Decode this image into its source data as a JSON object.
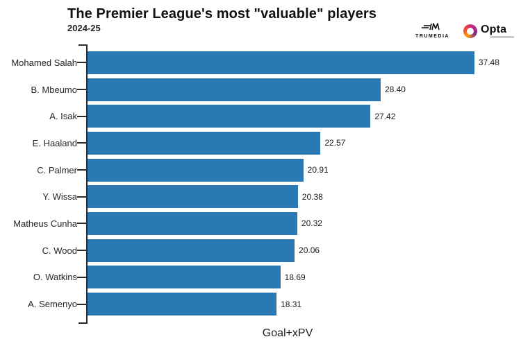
{
  "header": {
    "title": "The Premier League's most \"valuable\" players",
    "subtitle": "2024-25",
    "logos": {
      "trumedia_label": "TRUMEDIA",
      "opta_label": "Opta"
    }
  },
  "chart_data": {
    "type": "bar",
    "orientation": "horizontal",
    "title": "The Premier League's most \"valuable\" players",
    "subtitle": "2024-25",
    "categories": [
      "Mohamed Salah",
      "B. Mbeumo",
      "A. Isak",
      "E. Haaland",
      "C. Palmer",
      "Y. Wissa",
      "Matheus Cunha",
      "C. Wood",
      "O. Watkins",
      "A. Semenyo"
    ],
    "values": [
      37.48,
      28.4,
      27.42,
      22.57,
      20.91,
      20.38,
      20.32,
      20.06,
      18.69,
      18.31
    ],
    "value_labels": [
      "37.48",
      "28.40",
      "27.42",
      "22.57",
      "20.91",
      "20.38",
      "20.32",
      "20.06",
      "18.69",
      "18.31"
    ],
    "xlabel": "Goal+xPV",
    "ylabel": "",
    "xlim": [
      0,
      42
    ],
    "grid": false,
    "legend": false,
    "bar_color": "#2a78b4",
    "axis_color": "#2b2b2b"
  }
}
